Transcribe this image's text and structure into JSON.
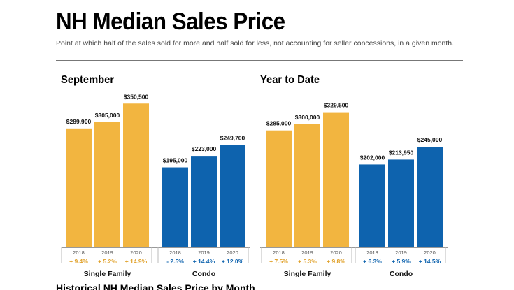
{
  "header": {
    "title": "NH Median Sales Price",
    "subtitle": "Point at which half of the sales sold for more and half sold for less, not accounting for seller concessions, in a given month.",
    "footer_partial": "Historical NH Median Sales Price by Month"
  },
  "colors": {
    "single_family": "#F2B540",
    "condo": "#0E63AE",
    "pct_single": "#E0A12A",
    "pct_condo": "#0E63AE"
  },
  "chart_data": [
    {
      "type": "bar",
      "title": "September",
      "groups": [
        {
          "name": "Single Family",
          "categories": [
            "2018",
            "2019",
            "2020"
          ],
          "values": [
            289900,
            305000,
            350500
          ],
          "labels": [
            "$289,900",
            "$305,000",
            "$350,500"
          ],
          "changes": [
            "+ 9.4%",
            "+ 5.2%",
            "+ 14.9%"
          ]
        },
        {
          "name": "Condo",
          "categories": [
            "2018",
            "2019",
            "2020"
          ],
          "values": [
            195000,
            223000,
            249700
          ],
          "labels": [
            "$195,000",
            "$223,000",
            "$249,700"
          ],
          "changes": [
            "- 2.5%",
            "+ 14.4%",
            "+ 12.0%"
          ]
        }
      ],
      "ylim": [
        0,
        380000
      ]
    },
    {
      "type": "bar",
      "title": "Year to Date",
      "groups": [
        {
          "name": "Single Family",
          "categories": [
            "2018",
            "2019",
            "2020"
          ],
          "values": [
            285000,
            300000,
            329500
          ],
          "labels": [
            "$285,000",
            "$300,000",
            "$329,500"
          ],
          "changes": [
            "+ 7.5%",
            "+ 5.3%",
            "+ 9.8%"
          ]
        },
        {
          "name": "Condo",
          "categories": [
            "2018",
            "2019",
            "2020"
          ],
          "values": [
            202000,
            213950,
            245000
          ],
          "labels": [
            "$202,000",
            "$213,950",
            "$245,000"
          ],
          "changes": [
            "+ 6.3%",
            "+ 5.9%",
            "+ 14.5%"
          ]
        }
      ],
      "ylim": [
        0,
        380000
      ]
    }
  ]
}
